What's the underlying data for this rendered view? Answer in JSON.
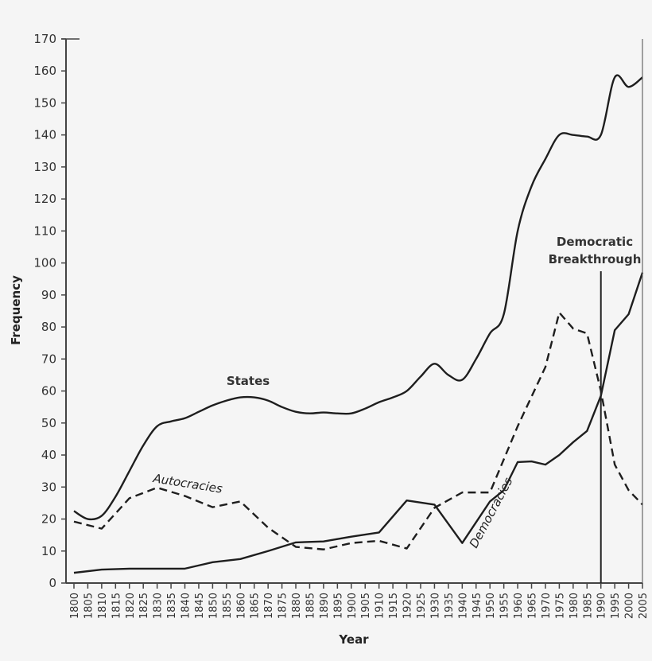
{
  "chart_data": {
    "type": "line",
    "title": "",
    "xlabel": "Year",
    "ylabel": "Frequency",
    "xlim": [
      1800,
      2005
    ],
    "ylim": [
      0,
      170
    ],
    "grid": false,
    "legend": "inline labels",
    "y_ticks": [
      0,
      10,
      20,
      30,
      40,
      50,
      60,
      70,
      80,
      90,
      100,
      110,
      120,
      130,
      140,
      150,
      160,
      170
    ],
    "x_ticks": [
      1800,
      1805,
      1810,
      1815,
      1820,
      1825,
      1830,
      1835,
      1840,
      1845,
      1850,
      1855,
      1860,
      1865,
      1870,
      1875,
      1880,
      1885,
      1890,
      1895,
      1900,
      1905,
      1910,
      1915,
      1920,
      1925,
      1930,
      1935,
      1940,
      1945,
      1950,
      1955,
      1960,
      1965,
      1970,
      1975,
      1980,
      1985,
      1990,
      1995,
      2000,
      2005
    ],
    "series": [
      {
        "name": "States",
        "style": "solid-smooth",
        "x": [
          1800,
          1805,
          1810,
          1815,
          1820,
          1825,
          1830,
          1835,
          1840,
          1845,
          1850,
          1855,
          1860,
          1865,
          1870,
          1875,
          1880,
          1885,
          1890,
          1895,
          1900,
          1905,
          1910,
          1915,
          1920,
          1925,
          1930,
          1935,
          1940,
          1945,
          1950,
          1955,
          1960,
          1965,
          1970,
          1975,
          1980,
          1985,
          1990,
          1995,
          2000,
          2005
        ],
        "values": [
          22.5,
          20,
          21,
          27,
          35,
          43,
          49,
          50.5,
          51.5,
          53.5,
          55.5,
          57,
          58,
          58,
          57,
          55,
          53.5,
          53,
          53.3,
          53,
          53,
          54.5,
          56.5,
          58,
          60,
          64.5,
          68.5,
          65,
          63.5,
          70,
          78,
          84,
          110,
          124,
          132.5,
          140,
          140,
          139.5,
          140,
          158,
          155,
          158
        ]
      },
      {
        "name": "Autocracies",
        "style": "dashed",
        "x": [
          1800,
          1810,
          1820,
          1830,
          1840,
          1850,
          1860,
          1870,
          1880,
          1890,
          1900,
          1910,
          1920,
          1930,
          1940,
          1950,
          1960,
          1970,
          1975,
          1980,
          1985,
          1990,
          1995,
          2000,
          2005
        ],
        "values": [
          19.2,
          17,
          26.5,
          29.8,
          27.2,
          23.7,
          25.5,
          17.3,
          11.3,
          10.5,
          12.5,
          13.2,
          10.8,
          23.5,
          28.3,
          28.3,
          49,
          67.5,
          84.5,
          79.5,
          78,
          60,
          37,
          29,
          24.5
        ]
      },
      {
        "name": "Democracies",
        "style": "solid",
        "x": [
          1800,
          1810,
          1820,
          1830,
          1840,
          1850,
          1860,
          1870,
          1880,
          1890,
          1900,
          1910,
          1920,
          1930,
          1940,
          1950,
          1955,
          1960,
          1965,
          1970,
          1975,
          1980,
          1985,
          1990,
          1995,
          2000,
          2005
        ],
        "values": [
          3.2,
          4.2,
          4.5,
          4.5,
          4.5,
          6.5,
          7.5,
          10,
          12.7,
          13,
          14.5,
          15.8,
          25.8,
          24.5,
          12.5,
          25.5,
          29,
          37.8,
          38,
          37,
          40,
          44,
          47.5,
          58.5,
          79,
          84,
          97
        ]
      }
    ],
    "annotations": [
      {
        "text": "States",
        "x": 1865,
        "y": 63
      },
      {
        "text": "Autocracies",
        "x": 1842,
        "y": 28,
        "rotation": 10
      },
      {
        "text": "Democracies",
        "x": 1960,
        "y": 18,
        "rotation": -62
      },
      {
        "text": "Democratic Breakthrough",
        "type": "vertical-line",
        "x": 1990
      }
    ]
  },
  "labels": {
    "xlabel": "Year",
    "ylabel": "Frequency",
    "states": "States",
    "autocracies": "Autocracies",
    "democracies": "Democracies",
    "breakthrough_line1": "Democratic",
    "breakthrough_line2": "Breakthrough"
  }
}
